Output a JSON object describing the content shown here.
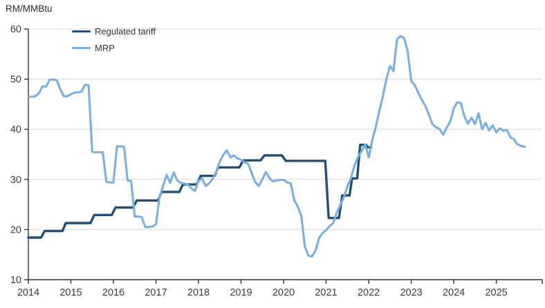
{
  "title": "RM/MMBtu",
  "colors": {
    "regulated_tariff": "#1F4E79",
    "mrp": "#7AAFE0",
    "axis": "#333333",
    "gridline": "#d9d9d9",
    "tick_text": "#3b3b3b"
  },
  "legend": [
    {
      "label": "Regulated tariff",
      "color": "#1F4E79"
    },
    {
      "label": "MRP",
      "color": "#7AAFE0"
    }
  ],
  "chart_data": {
    "type": "line",
    "title": "RM/MMBtu",
    "xlabel": "",
    "ylabel": "RM/MMBtu",
    "ylim": [
      10,
      60
    ],
    "yticks": [
      10,
      20,
      30,
      40,
      50,
      60
    ],
    "xlim": [
      2014,
      2026.08
    ],
    "xticks": [
      2014,
      2015,
      2016,
      2017,
      2018,
      2019,
      2020,
      2021,
      2022,
      2023,
      2024,
      2025
    ],
    "grid": true,
    "legend_position": "top-left",
    "series": [
      {
        "name": "Regulated tariff",
        "color": "#1F4E79",
        "width": 3.4,
        "points": [
          [
            2014.0,
            18.4
          ],
          [
            2014.3,
            18.4
          ],
          [
            2014.38,
            19.7
          ],
          [
            2014.8,
            19.7
          ],
          [
            2014.88,
            21.3
          ],
          [
            2015.46,
            21.3
          ],
          [
            2015.55,
            22.9
          ],
          [
            2015.96,
            22.9
          ],
          [
            2016.05,
            24.4
          ],
          [
            2016.46,
            24.4
          ],
          [
            2016.55,
            25.8
          ],
          [
            2017.05,
            25.8
          ],
          [
            2017.13,
            27.5
          ],
          [
            2017.55,
            27.5
          ],
          [
            2017.63,
            29.0
          ],
          [
            2017.96,
            29.0
          ],
          [
            2018.05,
            30.7
          ],
          [
            2018.38,
            30.7
          ],
          [
            2018.46,
            32.4
          ],
          [
            2018.96,
            32.4
          ],
          [
            2019.05,
            33.8
          ],
          [
            2019.46,
            33.8
          ],
          [
            2019.55,
            34.8
          ],
          [
            2019.96,
            34.8
          ],
          [
            2020.05,
            33.7
          ],
          [
            2020.98,
            33.7
          ],
          [
            2021.06,
            22.3
          ],
          [
            2021.3,
            22.3
          ],
          [
            2021.38,
            26.8
          ],
          [
            2021.55,
            26.8
          ],
          [
            2021.61,
            30.2
          ],
          [
            2021.73,
            30.2
          ],
          [
            2021.8,
            36.9
          ],
          [
            2021.94,
            36.9
          ],
          [
            2021.97,
            36.4
          ],
          [
            2022.06,
            36.4
          ]
        ]
      },
      {
        "name": "MRP",
        "color": "#7AAFE0",
        "width": 3.1,
        "x_start": 2014.0,
        "x_step": 0.0833333,
        "values": [
          46.5,
          46.5,
          46.6,
          47.2,
          48.6,
          48.5,
          49.9,
          49.9,
          49.8,
          48.0,
          46.6,
          46.6,
          47.0,
          47.3,
          47.4,
          47.5,
          48.9,
          48.8,
          35.5,
          35.4,
          35.4,
          35.4,
          29.5,
          29.4,
          29.4,
          36.6,
          36.6,
          36.5,
          29.8,
          29.7,
          22.6,
          22.6,
          22.5,
          20.5,
          20.5,
          20.6,
          21.0,
          26.5,
          28.7,
          30.9,
          29.3,
          31.4,
          29.8,
          29.3,
          29.2,
          29.0,
          28.2,
          27.7,
          29.7,
          30.2,
          28.7,
          29.2,
          30.1,
          31.5,
          33.5,
          34.9,
          35.8,
          34.4,
          34.8,
          34.2,
          33.9,
          33.4,
          33.1,
          31.3,
          29.5,
          28.7,
          30.0,
          31.5,
          30.3,
          29.6,
          29.8,
          29.9,
          29.9,
          29.4,
          29.2,
          25.9,
          24.6,
          22.7,
          16.6,
          14.8,
          14.6,
          15.8,
          18.3,
          19.3,
          19.9,
          20.7,
          21.3,
          23.4,
          24.9,
          26.4,
          28.6,
          30.3,
          32.8,
          34.5,
          35.6,
          37.0,
          34.4,
          37.8,
          40.5,
          43.6,
          46.6,
          50.0,
          52.6,
          51.6,
          58.0,
          58.6,
          58.2,
          55.6,
          49.6,
          48.8,
          47.3,
          45.9,
          44.6,
          42.9,
          41.0,
          40.4,
          40.1,
          38.9,
          40.3,
          41.5,
          44.2,
          45.4,
          45.2,
          42.6,
          41.1,
          42.3,
          41.0,
          43.2,
          40.0,
          41.3,
          39.8,
          40.8,
          39.4,
          40.2,
          39.7,
          39.9,
          38.4,
          38.0,
          37.0,
          36.7,
          36.5
        ]
      }
    ]
  }
}
